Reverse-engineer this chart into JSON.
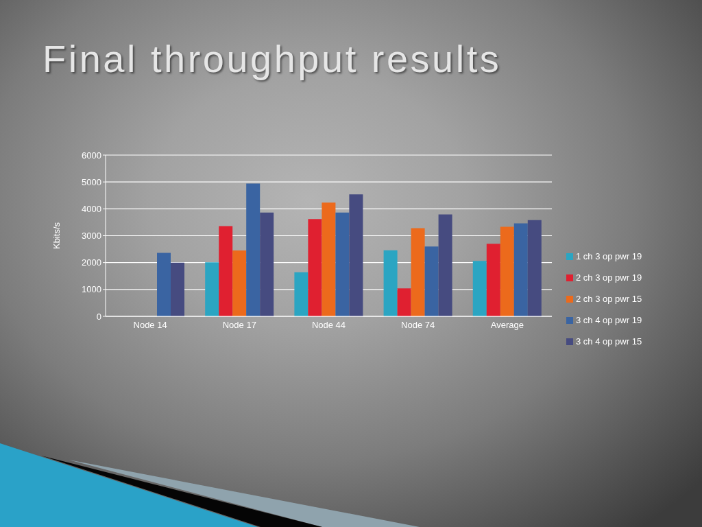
{
  "chart_data": {
    "type": "bar",
    "title": "Final throughput results",
    "ylabel": "Kbits/s",
    "categories": [
      "Node 14",
      "Node 17",
      "Node 44",
      "Node 74",
      "Average"
    ],
    "series": [
      {
        "name": "1 ch 3 op pwr 19",
        "color": "#2ba5c2",
        "values": [
          0,
          2010,
          1640,
          2460,
          2060
        ]
      },
      {
        "name": "2 ch 3 op pwr 19",
        "color": "#e02030",
        "values": [
          0,
          3360,
          3620,
          1040,
          2700
        ]
      },
      {
        "name": "2 ch 3 op pwr 15",
        "color": "#ec6a1c",
        "values": [
          0,
          2450,
          4230,
          3280,
          3330
        ]
      },
      {
        "name": "3 ch 4 op pwr 19",
        "color": "#3a64a2",
        "values": [
          2360,
          4940,
          3860,
          2600,
          3460
        ]
      },
      {
        "name": "3 ch 4 op pwr 15",
        "color": "#464b80",
        "values": [
          2000,
          3860,
          4540,
          3790,
          3580
        ]
      }
    ],
    "ylim": [
      0,
      6000
    ],
    "yticks": [
      0,
      1000,
      2000,
      3000,
      4000,
      5000,
      6000
    ],
    "grid": "y",
    "legend": "right"
  }
}
